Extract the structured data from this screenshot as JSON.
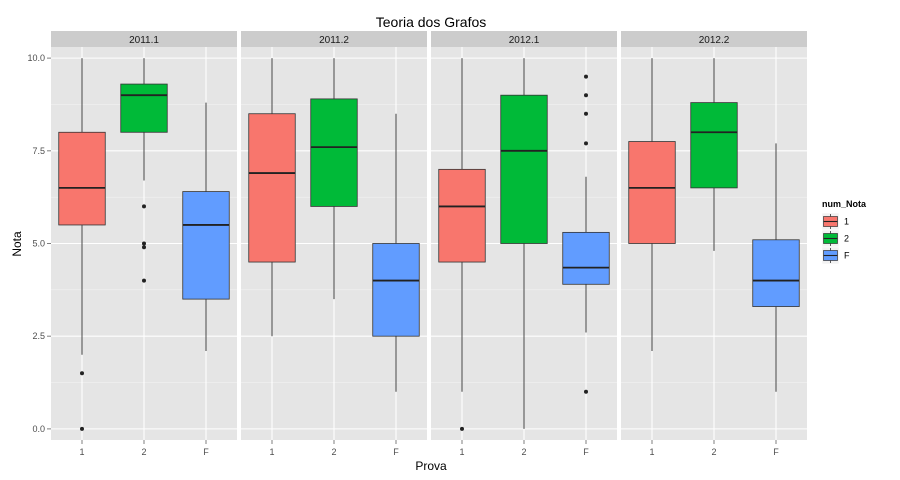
{
  "chart_data": {
    "type": "boxplot",
    "title": "Teoria dos Grafos",
    "xlabel": "Prova",
    "ylabel": "Nota",
    "ylim": [
      -0.3,
      10.3
    ],
    "yticks": [
      0.0,
      2.5,
      5.0,
      7.5,
      10.0
    ],
    "ytick_labels": [
      "0.0",
      "2.5",
      "5.0",
      "7.5",
      "10.0"
    ],
    "categories": [
      "1",
      "2",
      "F"
    ],
    "grid": true,
    "legend": {
      "title": "num_Nota",
      "position": "right",
      "entries": [
        {
          "label": "1",
          "color": "#F8766D"
        },
        {
          "label": "2",
          "color": "#00BA38"
        },
        {
          "label": "F",
          "color": "#619CFF"
        }
      ]
    },
    "panels": [
      {
        "label": "2011.1",
        "boxes": [
          {
            "cat": "1",
            "min": 2.0,
            "q1": 5.5,
            "median": 6.5,
            "q3": 8.0,
            "max": 10.0,
            "outliers": [
              1.5,
              0.0
            ]
          },
          {
            "cat": "2",
            "min": 6.7,
            "q1": 8.0,
            "median": 9.0,
            "q3": 9.3,
            "max": 10.0,
            "outliers": [
              6.0,
              5.0,
              4.9,
              4.0
            ]
          },
          {
            "cat": "F",
            "min": 2.1,
            "q1": 3.5,
            "median": 5.5,
            "q3": 6.4,
            "max": 8.8,
            "outliers": []
          }
        ]
      },
      {
        "label": "2011.2",
        "boxes": [
          {
            "cat": "1",
            "min": 2.5,
            "q1": 4.5,
            "median": 6.9,
            "q3": 8.5,
            "max": 10.0,
            "outliers": []
          },
          {
            "cat": "2",
            "min": 3.5,
            "q1": 6.0,
            "median": 7.6,
            "q3": 8.9,
            "max": 10.0,
            "outliers": []
          },
          {
            "cat": "F",
            "min": 1.0,
            "q1": 2.5,
            "median": 4.0,
            "q3": 5.0,
            "max": 8.5,
            "outliers": []
          }
        ]
      },
      {
        "label": "2012.1",
        "boxes": [
          {
            "cat": "1",
            "min": 1.0,
            "q1": 4.5,
            "median": 6.0,
            "q3": 7.0,
            "max": 10.0,
            "outliers": [
              0.0
            ]
          },
          {
            "cat": "2",
            "min": 0.0,
            "q1": 5.0,
            "median": 7.5,
            "q3": 9.0,
            "max": 10.0,
            "outliers": []
          },
          {
            "cat": "F",
            "min": 2.6,
            "q1": 3.9,
            "median": 4.35,
            "q3": 5.3,
            "max": 6.8,
            "outliers": [
              9.5,
              9.0,
              8.5,
              7.7,
              1.0
            ]
          }
        ]
      },
      {
        "label": "2012.2",
        "boxes": [
          {
            "cat": "1",
            "min": 2.1,
            "q1": 5.0,
            "median": 6.5,
            "q3": 7.75,
            "max": 10.0,
            "outliers": []
          },
          {
            "cat": "2",
            "min": 4.8,
            "q1": 6.5,
            "median": 8.0,
            "q3": 8.8,
            "max": 10.0,
            "outliers": []
          },
          {
            "cat": "F",
            "min": 1.0,
            "q1": 3.3,
            "median": 4.0,
            "q3": 5.1,
            "max": 7.7,
            "outliers": []
          }
        ]
      }
    ]
  }
}
